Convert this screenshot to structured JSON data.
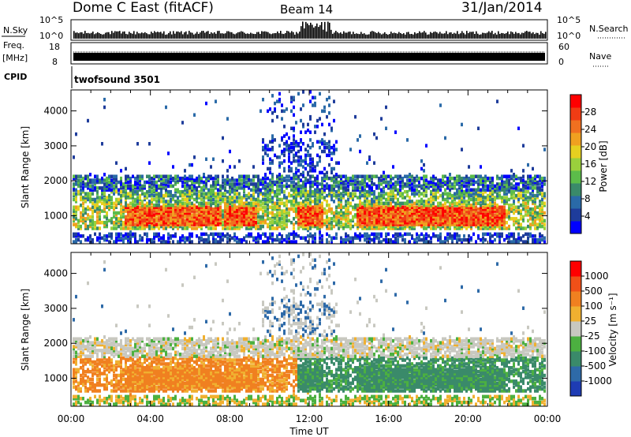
{
  "header": {
    "title": "Dome C East (fitACF)",
    "beam": "Beam 14",
    "date": "31/Jan/2014"
  },
  "noise_panel": {
    "left_label": "N.Sky",
    "right_label": "N.Search",
    "left_ticks": [
      "10^5",
      "10^0"
    ],
    "right_ticks": [
      "10^5",
      "10^0"
    ]
  },
  "freq_panel": {
    "left_label": "Freq.",
    "left_unit": "[MHz]",
    "left_ticks": [
      "18",
      "8"
    ],
    "right_label": "Nave",
    "right_ticks": [
      "60",
      "0"
    ]
  },
  "cpid": {
    "label": "CPID",
    "value": "twofsound 3501"
  },
  "chart_data": [
    {
      "type": "heatmap",
      "name": "power",
      "ylabel": "Slant Range [km]",
      "yticks": [
        "4000",
        "3000",
        "2000",
        "1000"
      ],
      "ylim": [
        200,
        4600
      ],
      "colorbar_label": "Power [dB]",
      "colorbar_ticks": [
        "28",
        "24",
        "20",
        "16",
        "12",
        "8",
        "4"
      ],
      "colors": [
        "#0000ff",
        "#1e3c9b",
        "#2a6aa8",
        "#3a8a6a",
        "#5cbc4a",
        "#9ad03c",
        "#e6d020",
        "#f0a020",
        "#f07020",
        "#f03c14",
        "#ff0000"
      ]
    },
    {
      "type": "heatmap",
      "name": "velocity",
      "ylabel": "Slant Range [km]",
      "yticks": [
        "4000",
        "3000",
        "2000",
        "1000"
      ],
      "ylim": [
        200,
        4600
      ],
      "colorbar_label": "Velocity [m s⁻¹]",
      "colorbar_ticks": [
        "1000",
        "500",
        "100",
        "25",
        "-25",
        "-100",
        "-500",
        "-1000"
      ],
      "colors": [
        "#1e3cb4",
        "#2e6aa8",
        "#3a8a6a",
        "#4cb040",
        "#c8c8c0",
        "#f0b030",
        "#f08020",
        "#f05018",
        "#ff0000"
      ]
    }
  ],
  "xaxis": {
    "label": "Time UT",
    "ticks": [
      "00:00",
      "04:00",
      "08:00",
      "12:00",
      "16:00",
      "20:00",
      "00:00"
    ]
  }
}
